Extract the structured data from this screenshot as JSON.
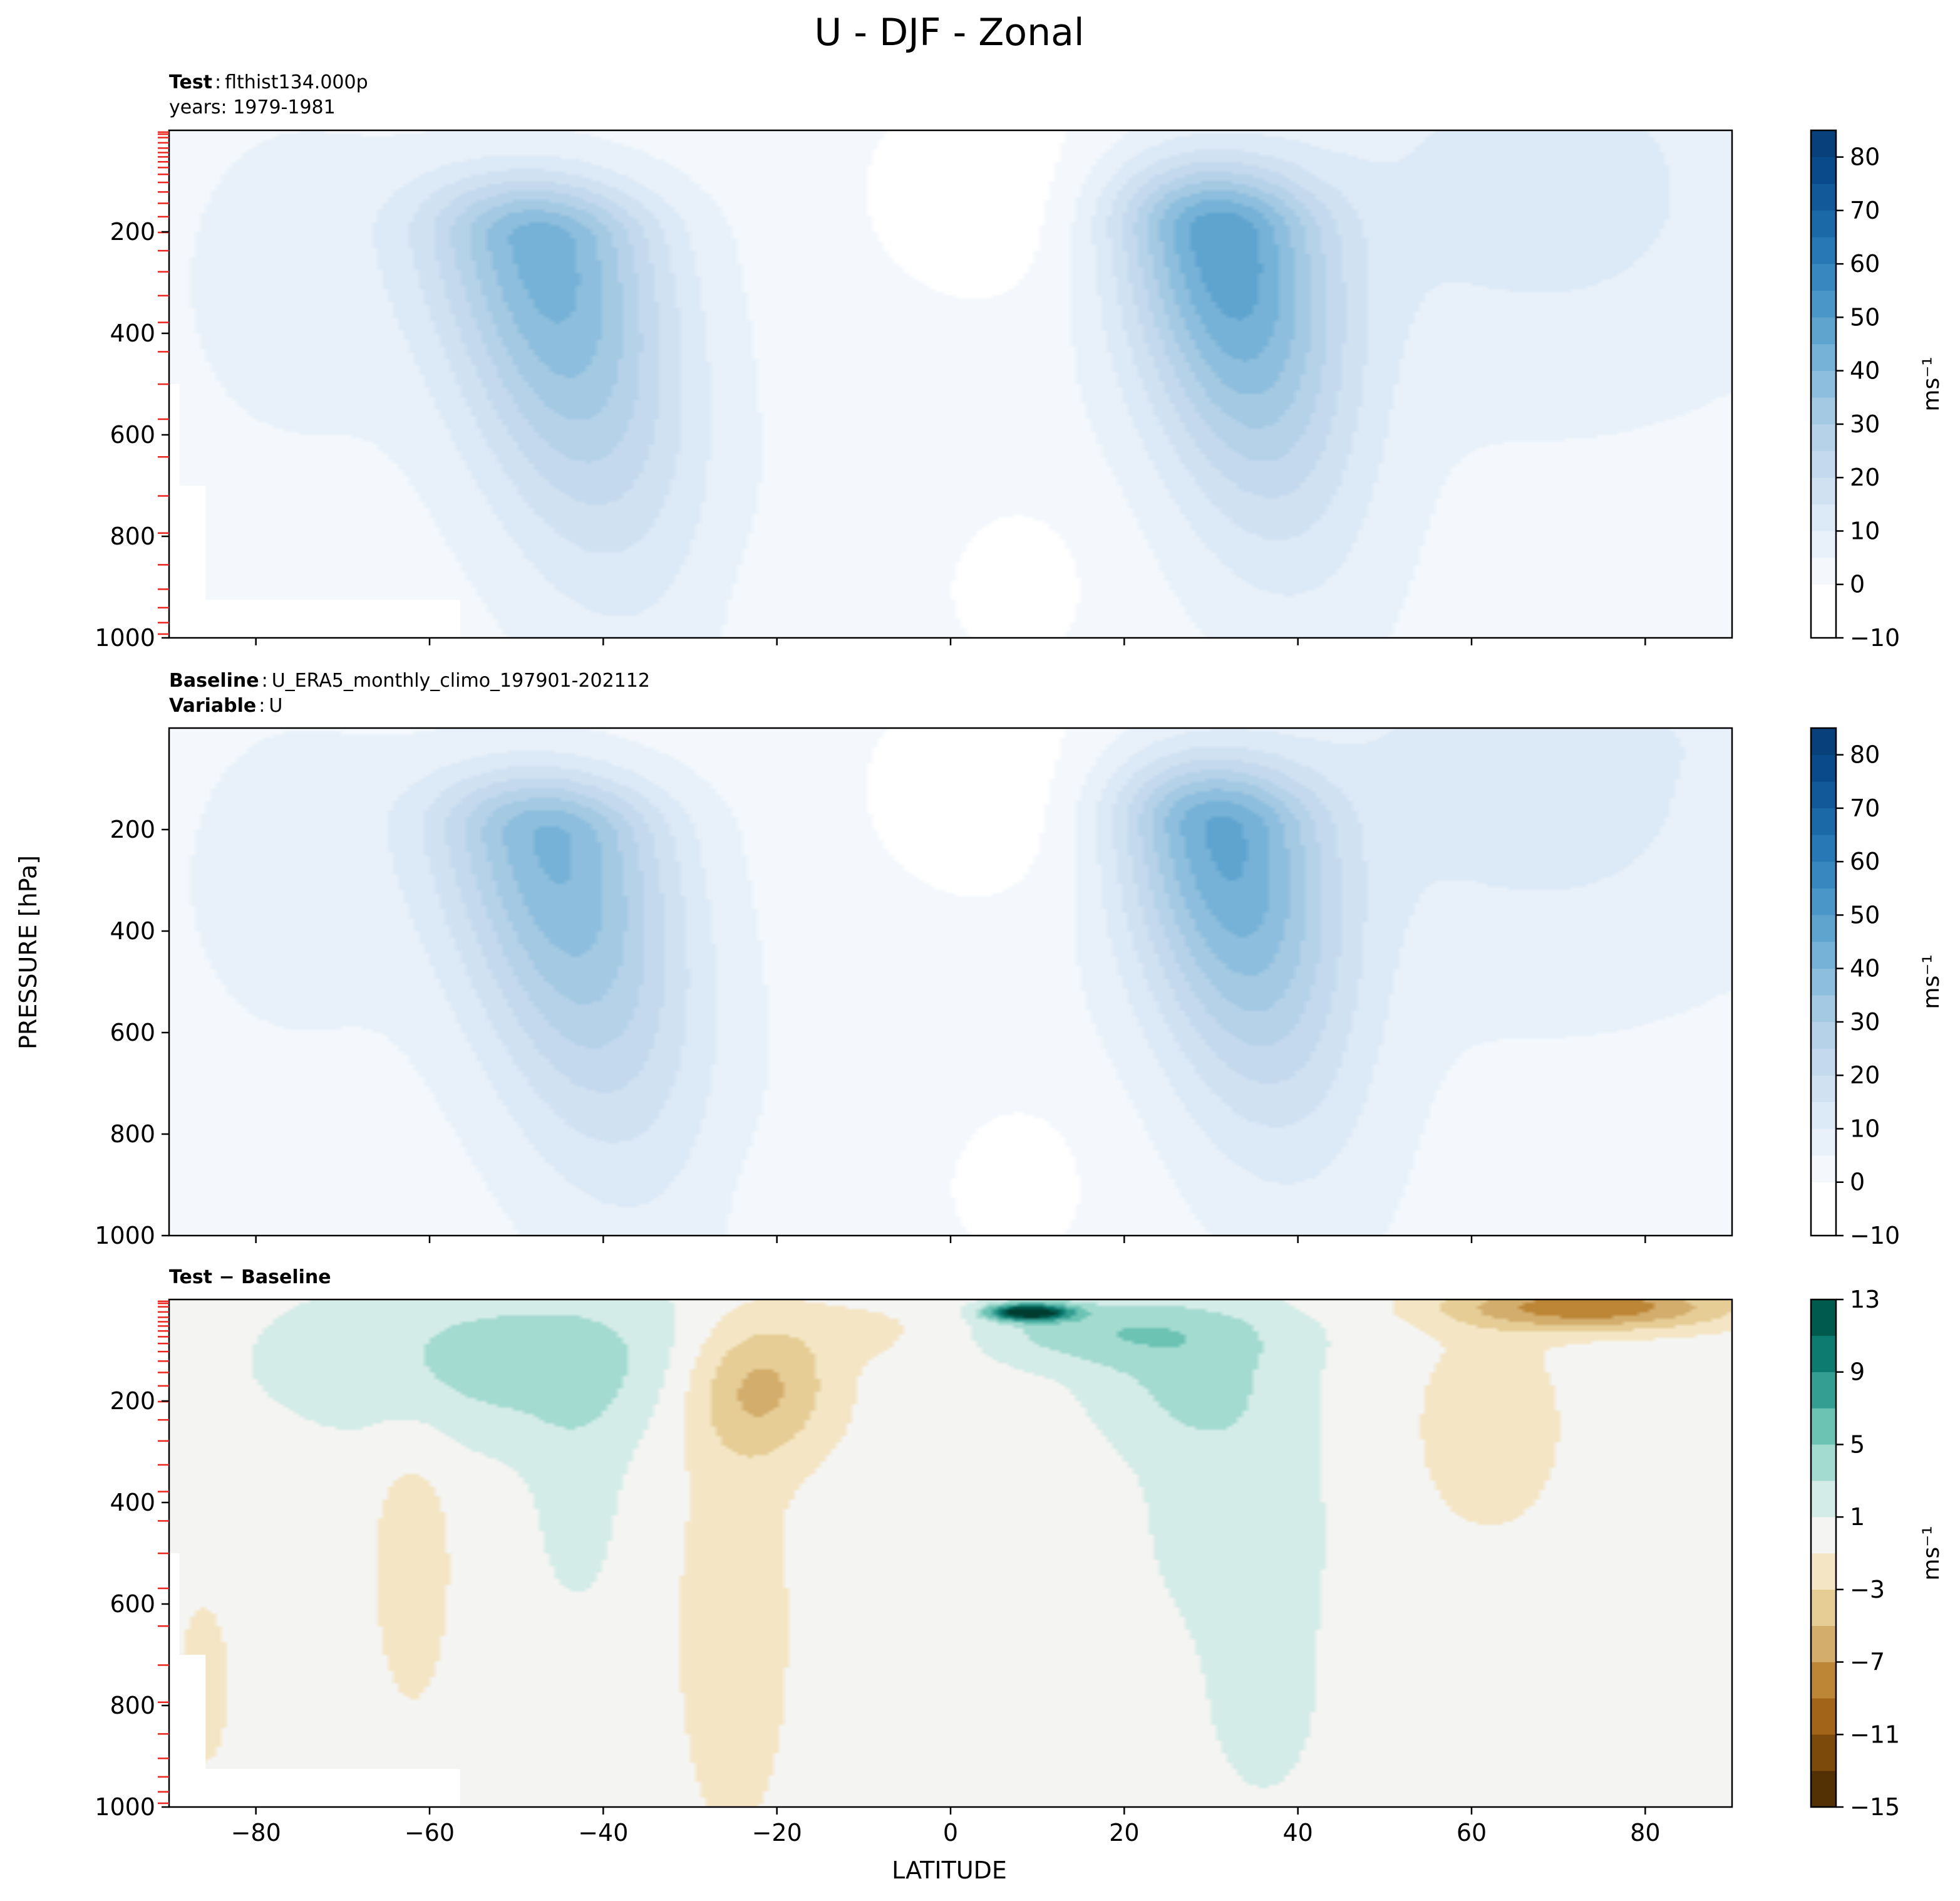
{
  "figure": {
    "title": "U - DJF - Zonal",
    "xlabel": "LATITUDE",
    "ylabel": "PRESSURE [hPa]"
  },
  "panels": [
    {
      "id": "test",
      "label_bold": "Test",
      "label_text": "flthist134.000p",
      "label2_text": "years: 1979-1981",
      "colorbar_unit": "ms⁻¹",
      "colorbar_ticks": [
        "−10",
        "0",
        "10",
        "20",
        "30",
        "40",
        "50",
        "60",
        "70",
        "80"
      ]
    },
    {
      "id": "baseline",
      "label_bold": "Baseline",
      "label_text": "U_ERA5_monthly_climo_197901-202112",
      "label2_bold": "Variable",
      "label2_text": "U",
      "colorbar_unit": "ms⁻¹",
      "colorbar_ticks": [
        "−10",
        "0",
        "10",
        "20",
        "30",
        "40",
        "50",
        "60",
        "70",
        "80"
      ]
    },
    {
      "id": "diff",
      "label_bold": "Test − Baseline",
      "colorbar_unit": "ms⁻¹",
      "colorbar_ticks": [
        "−15",
        "−11",
        "−7",
        "−3",
        "1",
        "5",
        "9",
        "13"
      ]
    }
  ],
  "chart_data": {
    "type": "heatmap",
    "title": "U - DJF - Zonal",
    "xlabel": "LATITUDE",
    "ylabel": "PRESSURE [hPa]",
    "xlim": [
      -90,
      90
    ],
    "ylim": [
      1000,
      0
    ],
    "xticks": [
      -80,
      -60,
      -40,
      -20,
      0,
      20,
      40,
      60,
      80
    ],
    "yticks": [
      200,
      400,
      600,
      800,
      1000
    ],
    "xtick_labels": [
      "−80",
      "−60",
      "−40",
      "−20",
      "0",
      "20",
      "40",
      "60",
      "80"
    ],
    "ytick_labels": [
      "200",
      "400",
      "600",
      "800",
      "1000"
    ],
    "model_levels_hpa": [
      3.6,
      7.6,
      14.4,
      24.6,
      35.1,
      43.9,
      52.3,
      62.0,
      73.3,
      86.7,
      102.6,
      121.5,
      143.8,
      170.2,
      201.2,
      237.2,
      278.7,
      325.8,
      378.5,
      436.3,
      500.1,
      569.2,
      643.5,
      720.3,
      793.5,
      856.0,
      904.2,
      940.6,
      970.1,
      992.6
    ],
    "colors": {
      "u_levels": [
        -10,
        0,
        5,
        10,
        15,
        20,
        25,
        30,
        35,
        40,
        45,
        50,
        55,
        60,
        65,
        70,
        75,
        80,
        85
      ],
      "u_colors": [
        "#ffffff",
        "#f4f8fc",
        "#e8f1fa",
        "#dce9f6",
        "#d0e1f2",
        "#c4d9ee",
        "#b5d2e9",
        "#a3c9e3",
        "#8dbedd",
        "#76b2d7",
        "#5fa4cf",
        "#4a96c8",
        "#3887bf",
        "#2878b5",
        "#1c69a8",
        "#12599a",
        "#0a4a8b",
        "#08407b",
        "#08306b"
      ],
      "diff_levels": [
        -15,
        -13,
        -11,
        -9,
        -7,
        -5,
        -3,
        -1,
        1,
        3,
        5,
        7,
        9,
        11,
        13
      ],
      "diff_colors": [
        "#543005",
        "#7c4a0b",
        "#a16418",
        "#bd8637",
        "#d3ad6c",
        "#e6cd96",
        "#f4e6c4",
        "#f4f4f2",
        "#d3ece7",
        "#a3dbd0",
        "#6cc3b4",
        "#359e92",
        "#0d7b70",
        "#005a4d",
        "#003c30"
      ]
    },
    "panels": [
      {
        "name": "Test",
        "units": "ms^-1",
        "jets": [
          {
            "lat": -47,
            "p": 220,
            "peak": 40
          },
          {
            "lat": 31,
            "p": 205,
            "peak": 45
          }
        ]
      },
      {
        "name": "Baseline",
        "units": "ms^-1",
        "jets": [
          {
            "lat": -46,
            "p": 215,
            "peak": 38
          },
          {
            "lat": 31,
            "p": 200,
            "peak": 42
          }
        ]
      },
      {
        "name": "Test − Baseline",
        "units": "ms^-1",
        "features": [
          {
            "lat": 9,
            "p": 28,
            "value": 13,
            "label": "equatorial stratospheric max"
          },
          {
            "lat": -22,
            "p": 170,
            "value": -6,
            "label": "subtropical negative"
          },
          {
            "lat": 72,
            "p": 20,
            "value": -8,
            "label": "polar stratosphere negative"
          }
        ]
      }
    ]
  }
}
